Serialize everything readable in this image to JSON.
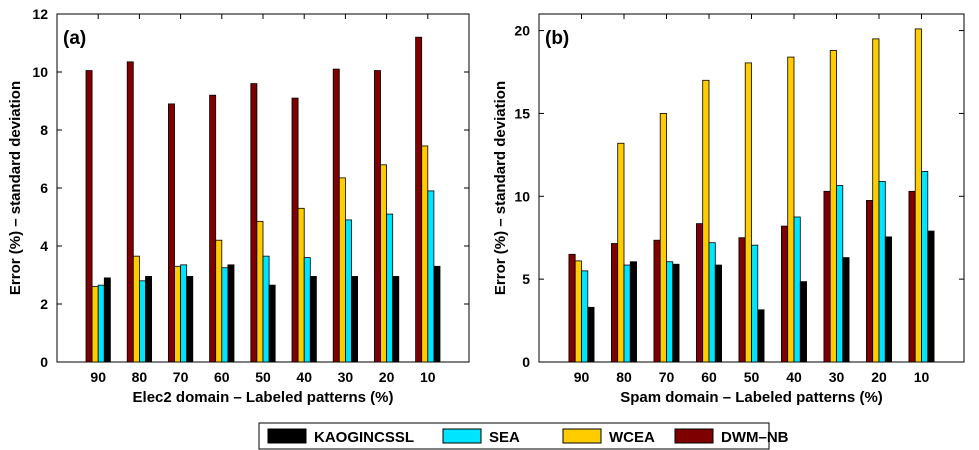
{
  "chart_data": [
    {
      "type": "bar",
      "panel_label": "(a)",
      "xlabel": "Elec2 domain – Labeled patterns (%)",
      "ylabel": "Error (%) – standard deviation",
      "categories": [
        "90",
        "80",
        "70",
        "60",
        "50",
        "40",
        "30",
        "20",
        "10"
      ],
      "ylim": [
        0,
        12
      ],
      "yticks": [
        0,
        2,
        4,
        6,
        8,
        10,
        12
      ],
      "series": [
        {
          "name": "DWM–NB",
          "color": "#7f0000",
          "values": [
            10.05,
            10.35,
            8.9,
            9.2,
            9.6,
            9.1,
            10.1,
            10.05,
            11.2
          ]
        },
        {
          "name": "WCEA",
          "color": "#ffcc00",
          "values": [
            2.6,
            3.65,
            3.3,
            4.2,
            4.85,
            5.3,
            6.35,
            6.8,
            7.45
          ]
        },
        {
          "name": "SEA",
          "color": "#00e5ff",
          "values": [
            2.65,
            2.8,
            3.35,
            3.25,
            3.65,
            3.6,
            4.9,
            5.1,
            5.9
          ]
        },
        {
          "name": "KAOGINCSSL",
          "color": "#000000",
          "values": [
            2.9,
            2.95,
            2.95,
            3.35,
            2.65,
            2.95,
            2.95,
            2.95,
            3.3
          ]
        }
      ]
    },
    {
      "type": "bar",
      "panel_label": "(b)",
      "xlabel": "Spam domain – Labeled patterns (%)",
      "ylabel": "Error (%) – standard deviation",
      "categories": [
        "90",
        "80",
        "70",
        "60",
        "50",
        "40",
        "30",
        "20",
        "10"
      ],
      "ylim": [
        0,
        21
      ],
      "yticks": [
        0,
        5,
        10,
        15,
        20
      ],
      "series": [
        {
          "name": "DWM–NB",
          "color": "#7f0000",
          "values": [
            6.5,
            7.15,
            7.35,
            8.35,
            7.5,
            8.2,
            10.3,
            9.75,
            10.3
          ]
        },
        {
          "name": "WCEA",
          "color": "#ffcc00",
          "values": [
            6.1,
            13.2,
            15.0,
            17.0,
            18.05,
            18.4,
            18.8,
            19.5,
            20.1
          ]
        },
        {
          "name": "SEA",
          "color": "#00e5ff",
          "values": [
            5.5,
            5.85,
            6.05,
            7.2,
            7.05,
            8.75,
            10.65,
            10.9,
            11.5
          ]
        },
        {
          "name": "KAOGINCSSL",
          "color": "#000000",
          "values": [
            3.3,
            6.05,
            5.9,
            5.85,
            3.15,
            4.85,
            6.3,
            7.55,
            7.9
          ]
        }
      ]
    }
  ],
  "legend": {
    "position": "bottom-center",
    "entries": [
      {
        "name": "KAOGINCSSL",
        "color": "#000000"
      },
      {
        "name": "SEA",
        "color": "#00e5ff"
      },
      {
        "name": "WCEA",
        "color": "#ffcc00"
      },
      {
        "name": "DWM–NB",
        "color": "#7f0000"
      }
    ]
  }
}
